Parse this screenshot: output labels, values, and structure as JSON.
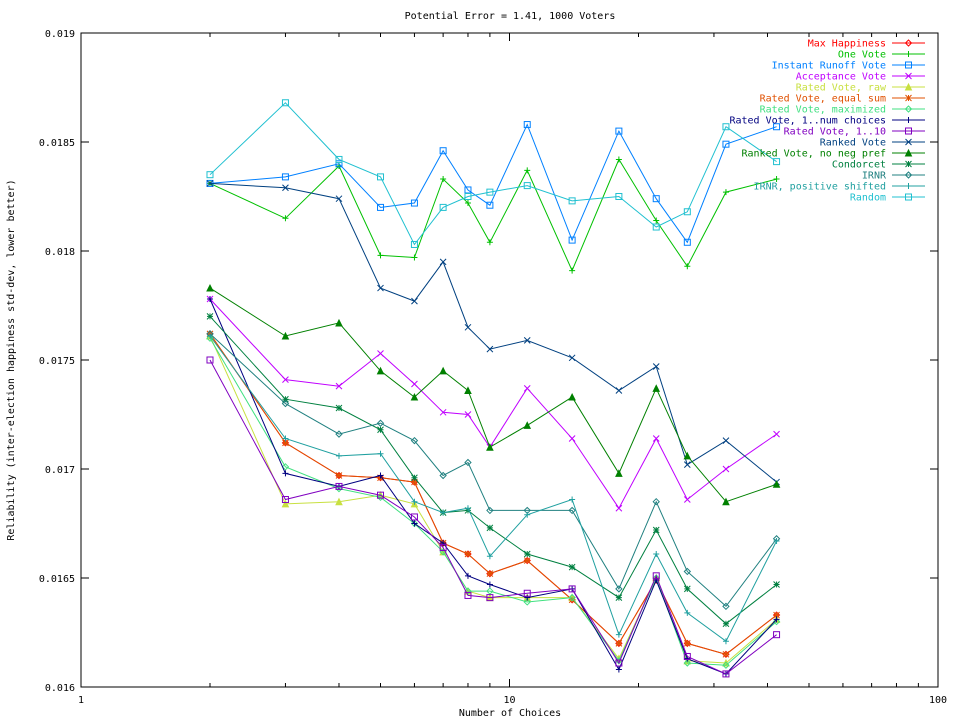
{
  "chart_data": {
    "type": "line",
    "title": "Potential Error = 1.41, 1000 Voters",
    "xlabel": "Number of Choices",
    "ylabel": "Reliability (inter-election happiness std-dev, lower better)",
    "xscale": "log",
    "xlim": [
      1,
      100
    ],
    "ylim": [
      0.016,
      0.019
    ],
    "xticks": [
      1,
      10,
      100
    ],
    "yticks": [
      "0.016",
      "0.0165",
      "0.017",
      "0.0175",
      "0.018",
      "0.0185",
      "0.019"
    ],
    "grid": false,
    "legend_position": "top-right",
    "x": [
      2,
      3,
      4,
      5,
      6,
      7,
      8,
      9,
      11,
      14,
      18,
      22,
      26,
      32,
      42
    ],
    "series": [
      {
        "name": "Max Happiness",
        "color": "#ff0000",
        "marker": "diamond",
        "values": [
          0.01762,
          0.01712,
          0.01697,
          0.01696,
          0.01694,
          0.01666,
          0.01661,
          0.01652,
          0.01658,
          0.0164,
          0.0162,
          0.01649,
          0.0162,
          0.01615,
          0.01633
        ]
      },
      {
        "name": "One Vote",
        "color": "#00c000",
        "marker": "plus",
        "values": [
          0.01831,
          0.01815,
          0.01839,
          0.01798,
          0.01797,
          0.01833,
          0.01822,
          0.01804,
          0.01837,
          0.01791,
          0.01842,
          0.01814,
          0.01793,
          0.01827,
          0.01833
        ]
      },
      {
        "name": "Instant Runoff Vote",
        "color": "#0080ff",
        "marker": "square",
        "values": [
          0.01831,
          0.01834,
          0.0184,
          0.0182,
          0.01822,
          0.01846,
          0.01828,
          0.01821,
          0.01858,
          0.01805,
          0.01855,
          0.01824,
          0.01804,
          0.01849,
          0.01857
        ]
      },
      {
        "name": "Acceptance Vote",
        "color": "#c000ff",
        "marker": "x",
        "values": [
          0.01778,
          0.01741,
          0.01738,
          0.01753,
          0.01739,
          0.01726,
          0.01725,
          0.0171,
          0.01737,
          0.01714,
          0.01682,
          0.01714,
          0.01686,
          0.017,
          0.01716
        ]
      },
      {
        "name": "Rated Vote, raw",
        "color": "#c8e040",
        "marker": "triangle",
        "values": [
          0.01761,
          0.01684,
          0.01685,
          0.01688,
          0.01684,
          0.01662,
          0.01644,
          0.01641,
          0.01641,
          0.01641,
          0.01613,
          0.0165,
          0.01612,
          0.01611,
          0.01631
        ]
      },
      {
        "name": "Rated Vote, equal sum",
        "color": "#e05000",
        "marker": "star",
        "values": [
          0.01762,
          0.01712,
          0.01697,
          0.01696,
          0.01694,
          0.01666,
          0.01661,
          0.01652,
          0.01658,
          0.0164,
          0.0162,
          0.01649,
          0.0162,
          0.01615,
          0.01633
        ]
      },
      {
        "name": "Rated Vote, maximized",
        "color": "#40e080",
        "marker": "diamond",
        "values": [
          0.0176,
          0.01701,
          0.01691,
          0.01687,
          0.01675,
          0.01662,
          0.01644,
          0.01644,
          0.01639,
          0.01641,
          0.01612,
          0.0165,
          0.01611,
          0.0161,
          0.0163
        ]
      },
      {
        "name": "Rated Vote, 1..num choices",
        "color": "#000080",
        "marker": "plus",
        "values": [
          0.01778,
          0.01698,
          0.01692,
          0.01697,
          0.01675,
          0.01666,
          0.01651,
          0.01647,
          0.01641,
          0.01645,
          0.01608,
          0.01649,
          0.01613,
          0.01606,
          0.01631
        ]
      },
      {
        "name": "Rated Vote, 1..10",
        "color": "#8000c0",
        "marker": "square",
        "values": [
          0.0175,
          0.01686,
          0.01692,
          0.01688,
          0.01678,
          0.01664,
          0.01642,
          0.01641,
          0.01643,
          0.01645,
          0.01611,
          0.01651,
          0.01614,
          0.01606,
          0.01624
        ]
      },
      {
        "name": "Ranked Vote",
        "color": "#004080",
        "marker": "x",
        "values": [
          0.01831,
          0.01829,
          0.01824,
          0.01783,
          0.01777,
          0.01795,
          0.01765,
          0.01755,
          0.01759,
          0.01751,
          0.01736,
          0.01747,
          0.01702,
          0.01713,
          0.01694
        ]
      },
      {
        "name": "Ranked Vote, no neg pref",
        "color": "#008000",
        "marker": "triangle",
        "values": [
          0.01783,
          0.01761,
          0.01767,
          0.01745,
          0.01733,
          0.01745,
          0.01736,
          0.0171,
          0.0172,
          0.01733,
          0.01698,
          0.01737,
          0.01706,
          0.01685,
          0.01693
        ]
      },
      {
        "name": "Condorcet",
        "color": "#008040",
        "marker": "star",
        "values": [
          0.0177,
          0.01732,
          0.01728,
          0.01718,
          0.01696,
          0.0168,
          0.01681,
          0.01673,
          0.01661,
          0.01655,
          0.01641,
          0.01672,
          0.01645,
          0.01629,
          0.01647
        ]
      },
      {
        "name": "IRNR",
        "color": "#208080",
        "marker": "diamond",
        "values": [
          0.01762,
          0.0173,
          0.01716,
          0.01721,
          0.01713,
          0.01697,
          0.01703,
          0.01681,
          0.01681,
          0.01681,
          0.01645,
          0.01685,
          0.01653,
          0.01637,
          0.01668
        ]
      },
      {
        "name": "IRNR, positive shifted",
        "color": "#20a0a0",
        "marker": "plus",
        "values": [
          0.01761,
          0.01714,
          0.01706,
          0.01707,
          0.01685,
          0.0168,
          0.01682,
          0.0166,
          0.01679,
          0.01686,
          0.01624,
          0.01661,
          0.01634,
          0.01621,
          0.01667
        ]
      },
      {
        "name": "Random",
        "color": "#20c0d0",
        "marker": "square",
        "values": [
          0.01835,
          0.01868,
          0.01842,
          0.01834,
          0.01803,
          0.0182,
          0.01825,
          0.01827,
          0.0183,
          0.01823,
          0.01825,
          0.01811,
          0.01818,
          0.01857,
          0.01841
        ]
      }
    ]
  }
}
